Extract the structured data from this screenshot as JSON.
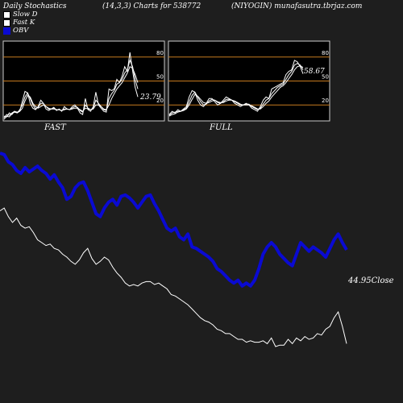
{
  "header": {
    "left": "Daily Stochastics",
    "middle": "(14,3,3) Charts for 538772",
    "right": "(NIYOGIN) munafasutra.tbrjaz.com"
  },
  "legend": [
    {
      "label": "Slow  D",
      "color": "#ffffff",
      "border": "#000000"
    },
    {
      "label": "Fast K",
      "color": "#ffffff",
      "border": "#000000"
    },
    {
      "label": "OBV",
      "color": "#0a0ad2",
      "border": "#0a0ad2"
    }
  ],
  "colors": {
    "background": "#1e1e1e",
    "panel_border": "#cccccc",
    "level_line": "#c67a1e",
    "stoch_line": "#ffffff",
    "obv_line": "#0a0ad2",
    "close_line": "#ffffff"
  },
  "chart_data": [
    {
      "type": "line",
      "title": "FAST",
      "ylim": [
        0,
        100
      ],
      "levels": [
        20,
        50,
        80
      ],
      "level_labels": [
        "20",
        "50",
        "80"
      ],
      "last_label": "23.79",
      "series": [
        {
          "values": [
            6,
            5,
            10,
            8,
            12,
            11,
            12,
            25,
            37,
            35,
            22,
            16,
            14,
            18,
            26,
            22,
            15,
            13,
            15,
            17,
            13,
            15,
            12,
            18,
            15,
            14,
            18,
            20,
            16,
            10,
            8,
            28,
            14,
            12,
            18,
            36,
            20,
            16,
            12,
            11,
            40,
            38,
            40,
            52,
            48,
            56,
            68,
            62,
            86,
            63,
            42,
            30
          ]
        },
        {
          "values": [
            4,
            8,
            7,
            10,
            12,
            10,
            14,
            20,
            30,
            35,
            28,
            20,
            15,
            17,
            22,
            22,
            18,
            15,
            15,
            16,
            14,
            14,
            13,
            15,
            15,
            14,
            16,
            18,
            17,
            13,
            11,
            20,
            16,
            14,
            16,
            26,
            22,
            18,
            14,
            13,
            28,
            34,
            38,
            46,
            48,
            52,
            60,
            64,
            76,
            68,
            52,
            40
          ]
        },
        {
          "values": [
            2,
            6,
            5,
            9,
            11,
            10,
            12,
            16,
            25,
            32,
            30,
            22,
            18,
            16,
            18,
            20,
            18,
            16,
            15,
            15,
            14,
            14,
            13,
            14,
            15,
            14,
            15,
            16,
            16,
            14,
            12,
            16,
            15,
            14,
            15,
            20,
            20,
            18,
            15,
            14,
            20,
            28,
            34,
            40,
            44,
            48,
            54,
            60,
            68,
            66,
            58,
            48
          ]
        }
      ]
    },
    {
      "type": "line",
      "title": "FULL",
      "ylim": [
        0,
        100
      ],
      "levels": [
        20,
        50,
        80
      ],
      "level_labels": [
        "20",
        "50",
        "80"
      ],
      "last_label": "58.67",
      "series": [
        {
          "values": [
            8,
            12,
            10,
            14,
            12,
            15,
            18,
            30,
            38,
            36,
            26,
            20,
            18,
            22,
            28,
            28,
            24,
            20,
            22,
            26,
            30,
            28,
            26,
            22,
            20,
            18,
            20,
            22,
            20,
            16,
            14,
            12,
            18,
            26,
            30,
            28,
            40,
            42,
            44,
            46,
            48,
            58,
            62,
            64,
            76,
            74,
            68,
            59
          ]
        },
        {
          "values": [
            7,
            10,
            11,
            12,
            12,
            14,
            16,
            24,
            32,
            36,
            30,
            24,
            20,
            21,
            25,
            27,
            26,
            23,
            22,
            24,
            27,
            27,
            26,
            24,
            22,
            20,
            20,
            21,
            21,
            18,
            16,
            14,
            16,
            21,
            26,
            28,
            34,
            38,
            42,
            44,
            46,
            52,
            58,
            62,
            70,
            72,
            70,
            64
          ]
        },
        {
          "values": [
            6,
            8,
            9,
            11,
            12,
            13,
            15,
            20,
            27,
            33,
            31,
            27,
            23,
            22,
            23,
            25,
            26,
            24,
            23,
            23,
            25,
            26,
            26,
            25,
            23,
            21,
            20,
            20,
            20,
            19,
            17,
            15,
            15,
            18,
            22,
            25,
            30,
            34,
            38,
            42,
            44,
            48,
            53,
            58,
            64,
            68,
            69,
            67
          ]
        }
      ]
    },
    {
      "type": "line",
      "series": [
        {
          "name": "OBV",
          "values": [
            100,
            99,
            94,
            92,
            88,
            86,
            90,
            87,
            89,
            91,
            88,
            86,
            82,
            85,
            80,
            76,
            68,
            70,
            76,
            79,
            80,
            74,
            66,
            58,
            56,
            62,
            66,
            68,
            64,
            70,
            71,
            69,
            66,
            62,
            66,
            70,
            71,
            65,
            60,
            54,
            48,
            46,
            48,
            42,
            40,
            44,
            35,
            34,
            32,
            30,
            28,
            25,
            20,
            18,
            15,
            12,
            10,
            12,
            8,
            10,
            8,
            12,
            20,
            30,
            35,
            38,
            35,
            30,
            27,
            24,
            22,
            30,
            38,
            35,
            32,
            35,
            33,
            31,
            28,
            34,
            40,
            44,
            38,
            33
          ]
        },
        {
          "name": "Close",
          "values": [
            60,
            62,
            56,
            52,
            55,
            50,
            48,
            49,
            45,
            40,
            38,
            36,
            37,
            34,
            33,
            30,
            28,
            25,
            23,
            26,
            31,
            34,
            27,
            23,
            25,
            28,
            26,
            21,
            17,
            14,
            10,
            8,
            9,
            8,
            10,
            11,
            11,
            9,
            10,
            8,
            6,
            2,
            1,
            -1,
            -3,
            -5,
            -8,
            -11,
            -14,
            -16,
            -17,
            -19,
            -22,
            -23,
            -25,
            -25,
            -27,
            -29,
            -29,
            -31,
            -30,
            -31,
            -31,
            -30,
            -32,
            -28,
            -34,
            -33,
            -33,
            -29,
            -32,
            -28,
            -30,
            -27,
            -29,
            -28,
            -25,
            -26,
            -22,
            -20,
            -14,
            -10,
            -20,
            -32
          ]
        }
      ],
      "last_label": "44.95",
      "close_label": "Close"
    }
  ]
}
